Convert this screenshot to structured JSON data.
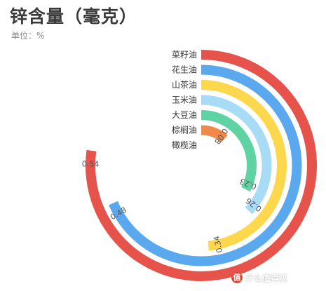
{
  "header": {
    "title": "锌含量（毫克）",
    "unit_label": "单位：",
    "unit_value": "%"
  },
  "chart_data": {
    "type": "radial_bar",
    "title": "锌含量（毫克）",
    "subtitle": "单位：%",
    "max": 0.7,
    "categories": [
      "菜籽油",
      "花生油",
      "山茶油",
      "玉米油",
      "大豆油",
      "棕榈油",
      "橄榄油"
    ],
    "values": [
      0.54,
      0.48,
      0.34,
      0.26,
      0.23,
      0.08,
      0
    ],
    "value_labels": [
      "0.54",
      "0.48",
      "0.34",
      "0.26",
      "0.23",
      "0.08",
      ""
    ],
    "colors": [
      "#e5534b",
      "#5aa9ef",
      "#fdd84c",
      "#a8dcf6",
      "#5fd3a3",
      "#f08a4b",
      "#cccccc"
    ]
  },
  "watermark": {
    "icon_text": "值",
    "text": "什么值得买"
  }
}
